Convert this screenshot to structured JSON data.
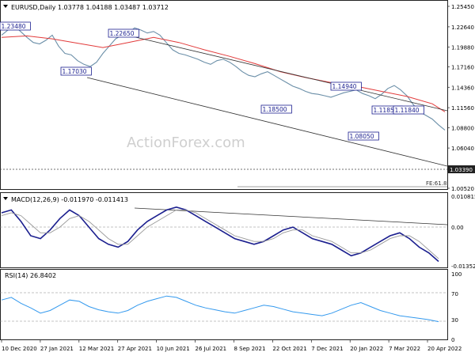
{
  "chart_data": [
    {
      "type": "line",
      "panel": "price",
      "title": "EURUSD,Daily  1.03778 1.04188 1.03487 1.03712",
      "symbol_label": "EURUSD,Daily",
      "ohlc": {
        "open": 1.03778,
        "high": 1.04188,
        "low": 1.03487,
        "close": 1.03712
      },
      "watermark": "ActionForex.com",
      "ylim": [
        1.0052,
        1.2545
      ],
      "y_ticks": [
        "1.25450",
        "1.22640",
        "1.19880",
        "1.17160",
        "1.14360",
        "1.11560",
        "1.08800",
        "1.06040",
        "1.03390",
        "1.00520"
      ],
      "x_ticks": [
        "10 Dec 2020",
        "27 Jan 2021",
        "12 Mar 2021",
        "27 Apr 2021",
        "10 Jun 2021",
        "26 Jul 2021",
        "8 Sep 2021",
        "22 Oct 2021",
        "7 Dec 2021",
        "20 Jan 2022",
        "7 Mar 2022",
        "20 Apr 2022"
      ],
      "current_price_label": "1.03390",
      "fib_label": "FE:61.8",
      "series": [
        {
          "role": "price",
          "color": "#6b8fa8",
          "x": [
            0,
            5,
            10,
            15,
            20,
            25,
            30,
            35,
            40,
            45,
            50,
            55,
            60,
            65,
            70,
            75,
            80,
            85,
            90,
            95,
            100,
            105,
            110,
            115,
            120,
            125,
            130,
            135,
            140,
            145,
            150,
            155,
            160,
            165,
            170,
            175,
            180,
            185,
            190,
            195,
            200,
            205,
            210,
            215,
            220,
            225,
            230,
            235,
            240,
            245,
            250,
            255,
            260,
            265,
            270,
            275,
            280,
            285,
            290,
            295,
            300,
            305,
            310,
            315,
            320,
            325,
            330,
            335,
            340,
            345,
            350
          ],
          "values": [
            1.215,
            1.222,
            1.228,
            1.22,
            1.212,
            1.205,
            1.203,
            1.208,
            1.215,
            1.2,
            1.19,
            1.188,
            1.18,
            1.175,
            1.172,
            1.178,
            1.19,
            1.2,
            1.21,
            1.215,
            1.218,
            1.225,
            1.222,
            1.218,
            1.22,
            1.215,
            1.205,
            1.195,
            1.19,
            1.188,
            1.185,
            1.182,
            1.178,
            1.175,
            1.18,
            1.182,
            1.178,
            1.172,
            1.165,
            1.16,
            1.158,
            1.162,
            1.165,
            1.16,
            1.155,
            1.15,
            1.145,
            1.142,
            1.138,
            1.135,
            1.134,
            1.132,
            1.13,
            1.133,
            1.136,
            1.138,
            1.14,
            1.135,
            1.132,
            1.128,
            1.134,
            1.142,
            1.146,
            1.14,
            1.132,
            1.12,
            1.11,
            1.105,
            1.1,
            1.092,
            1.085
          ]
        },
        {
          "role": "moving-average",
          "color": "#e23a3a",
          "x": [
            0,
            20,
            40,
            60,
            80,
            100,
            120,
            140,
            160,
            180,
            200,
            220,
            240,
            260,
            280,
            300,
            320,
            340,
            350
          ],
          "values": [
            1.212,
            1.214,
            1.21,
            1.204,
            1.198,
            1.205,
            1.212,
            1.205,
            1.195,
            1.186,
            1.176,
            1.165,
            1.157,
            1.15,
            1.145,
            1.138,
            1.131,
            1.121,
            1.11
          ]
        }
      ],
      "annotations": [
        "1.23480",
        "1.22650",
        "1.17030",
        "1.18500",
        "1.14940",
        "1.11850",
        "1.08050",
        "1.11840"
      ]
    },
    {
      "type": "line",
      "panel": "macd",
      "title": "MACD(12,26,9) -0.011970 -0.011413",
      "ylim": [
        -0.01352,
        0.010815
      ],
      "y_ticks": [
        "0.010815",
        "0.00",
        "-0.01352"
      ],
      "series": [
        {
          "role": "macd",
          "color": "#1b1f8f",
          "values": [
            0.005,
            0.006,
            0.002,
            -0.003,
            -0.004,
            -0.001,
            0.003,
            0.006,
            0.004,
            0.0,
            -0.004,
            -0.006,
            -0.007,
            -0.005,
            -0.001,
            0.002,
            0.004,
            0.006,
            0.007,
            0.006,
            0.004,
            0.002,
            0.0,
            -0.002,
            -0.004,
            -0.005,
            -0.006,
            -0.005,
            -0.003,
            -0.001,
            0.0,
            -0.002,
            -0.004,
            -0.005,
            -0.006,
            -0.008,
            -0.01,
            -0.009,
            -0.007,
            -0.005,
            -0.003,
            -0.002,
            -0.004,
            -0.007,
            -0.009,
            -0.012
          ]
        },
        {
          "role": "signal",
          "color": "#999999",
          "values": [
            0.004,
            0.005,
            0.004,
            0.001,
            -0.002,
            -0.002,
            0.0,
            0.003,
            0.004,
            0.002,
            -0.001,
            -0.004,
            -0.006,
            -0.006,
            -0.003,
            0.0,
            0.002,
            0.004,
            0.006,
            0.006,
            0.005,
            0.003,
            0.001,
            -0.001,
            -0.003,
            -0.004,
            -0.005,
            -0.005,
            -0.004,
            -0.002,
            -0.001,
            -0.001,
            -0.003,
            -0.004,
            -0.005,
            -0.007,
            -0.009,
            -0.009,
            -0.008,
            -0.006,
            -0.004,
            -0.003,
            -0.003,
            -0.005,
            -0.008,
            -0.011
          ]
        }
      ]
    },
    {
      "type": "line",
      "panel": "rsi",
      "title": "RSI(14) 26.8402",
      "ylim": [
        0,
        100
      ],
      "y_ticks": [
        "100",
        "70",
        "30",
        "0"
      ],
      "series": [
        {
          "role": "rsi",
          "color": "#3399ee",
          "values": [
            60,
            64,
            55,
            48,
            40,
            44,
            52,
            60,
            58,
            50,
            45,
            42,
            40,
            44,
            52,
            58,
            62,
            66,
            64,
            58,
            52,
            48,
            45,
            42,
            40,
            44,
            48,
            52,
            50,
            46,
            42,
            40,
            38,
            36,
            40,
            46,
            52,
            56,
            50,
            44,
            40,
            36,
            34,
            32,
            30,
            27
          ]
        }
      ]
    }
  ]
}
